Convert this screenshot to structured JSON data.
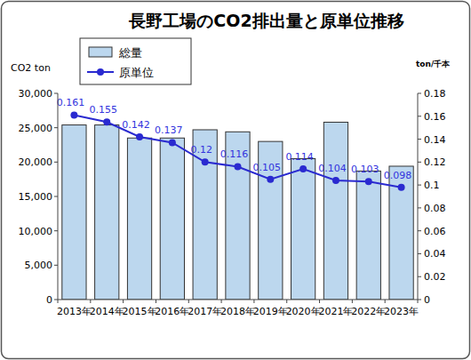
{
  "chart_data": {
    "type": "bar",
    "title": "長野工場のCO2排出量と原単位推移",
    "y_label": "CO2 ton",
    "y2_label": "ton/千本",
    "categories": [
      "2013年",
      "2014年",
      "2015年",
      "2016年",
      "2017年",
      "2018年",
      "2019年",
      "2020年",
      "2021年",
      "2022年",
      "2023年"
    ],
    "series": [
      {
        "name": "総量",
        "type": "bar",
        "color": "#bcd7ee",
        "values": [
          25400,
          25400,
          23500,
          23500,
          24700,
          24400,
          23000,
          20500,
          25800,
          18700,
          19400
        ]
      },
      {
        "name": "原単位",
        "type": "line",
        "axis": "y2",
        "color": "#2a2ad0",
        "marker": "circle",
        "data_labels": true,
        "values": [
          0.161,
          0.155,
          0.142,
          0.137,
          0.12,
          0.116,
          0.105,
          0.114,
          0.104,
          0.103,
          0.098
        ]
      }
    ],
    "ylim": [
      0,
      30000
    ],
    "yticks": [
      0,
      {
        "value": 5000,
        "label": "5,000"
      },
      {
        "value": 10000,
        "label": "10,000"
      },
      {
        "value": 15000,
        "label": "15,000"
      },
      {
        "value": 20000,
        "label": "20,000"
      },
      {
        "value": 25000,
        "label": "25,000"
      },
      {
        "value": 30000,
        "label": "30,000"
      }
    ],
    "y2lim": [
      0,
      0.18
    ],
    "y2ticks": [
      0,
      0.02,
      0.04,
      0.06,
      0.08,
      0.1,
      0.12,
      0.14,
      0.16,
      0.18
    ],
    "grid": false,
    "legend": "top-left"
  }
}
